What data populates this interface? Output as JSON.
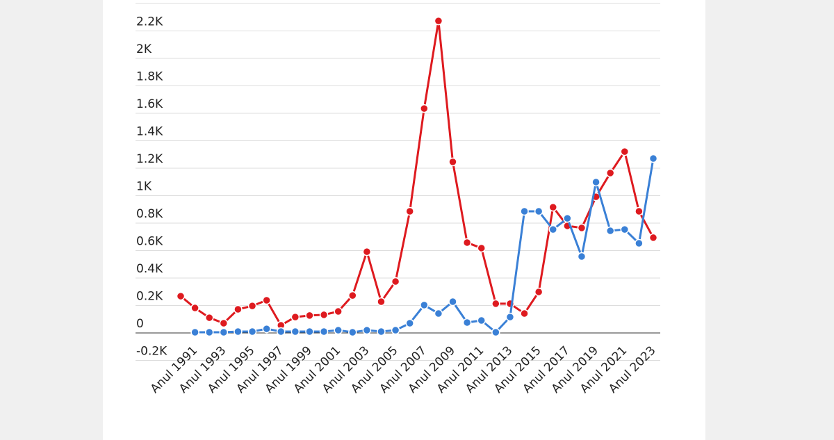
{
  "chart_data": {
    "type": "line",
    "categories": [
      null,
      "Anul 1991",
      null,
      "Anul 1993",
      null,
      "Anul 1995",
      null,
      "Anul 1997",
      null,
      "Anul 1999",
      null,
      "Anul 2001",
      null,
      "Anul 2003",
      null,
      "Anul 2005",
      null,
      "Anul 2007",
      null,
      "Anul 2009",
      null,
      "Anul 2011",
      null,
      "Anul 2013",
      null,
      "Anul 2015",
      null,
      "Anul 2017",
      null,
      "Anul 2019",
      null,
      "Anul 2021",
      null,
      "Anul 2023"
    ],
    "series": [
      {
        "color": "#de1a1f",
        "values": [
          268,
          182,
          111,
          71,
          172,
          197,
          238,
          56,
          116,
          127,
          132,
          157,
          273,
          592,
          228,
          375,
          886,
          1635,
          2273,
          1246,
          658,
          618,
          213,
          213,
          142,
          299,
          916,
          780,
          765,
          992,
          1165,
          1321,
          886,
          694
        ]
      },
      {
        "color": "#3a80d6",
        "values": [
          null,
          5,
          5,
          5,
          10,
          10,
          30,
          10,
          10,
          10,
          10,
          20,
          5,
          20,
          10,
          20,
          71,
          203,
          142,
          228,
          76,
          91,
          5,
          116,
          886,
          886,
          754,
          835,
          557,
          1099,
          744,
          754,
          653,
          1271
        ]
      }
    ],
    "ylim": [
      -200,
      2400
    ],
    "yticks": [
      {
        "value": -200,
        "label": "-0.2K"
      },
      0,
      {
        "value": 200,
        "label": "0.2K"
      },
      {
        "value": 400,
        "label": "0.4K"
      },
      {
        "value": 600,
        "label": "0.6K"
      },
      {
        "value": 800,
        "label": "0.8K"
      },
      {
        "value": 1000,
        "label": "1K"
      },
      {
        "value": 1200,
        "label": "1.2K"
      },
      {
        "value": 1400,
        "label": "1.4K"
      },
      {
        "value": 1600,
        "label": "1.6K"
      },
      {
        "value": 1800,
        "label": "1.8K"
      },
      {
        "value": 2000,
        "label": "2K"
      },
      {
        "value": 2200,
        "label": "2.2K"
      }
    ],
    "grid": true
  }
}
